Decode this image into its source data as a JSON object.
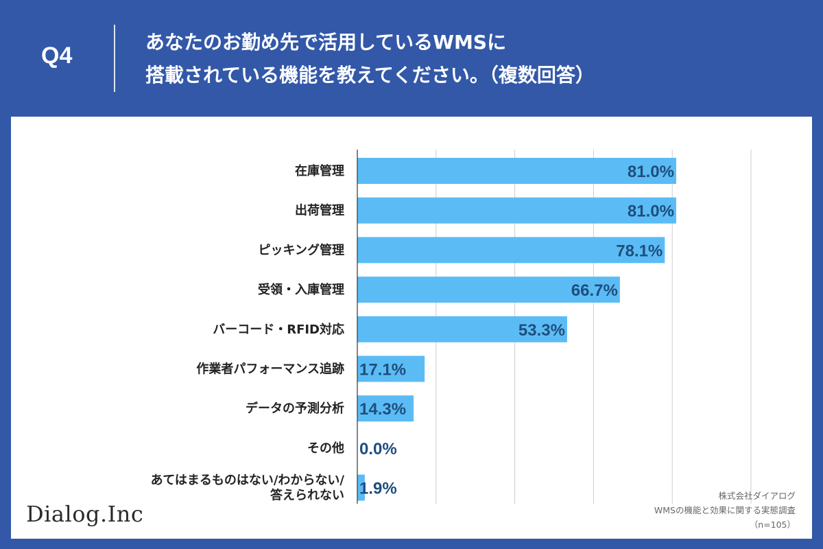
{
  "header": {
    "question_number": "Q4",
    "title_line1": "あなたのお勤め先で活用しているWMSに",
    "title_line2": "搭載されている機能を教えてください。（複数回答）"
  },
  "colors": {
    "header_bg": "#3358a8",
    "bar": "#5bbcf5",
    "value_text": "#1f4e7d",
    "label_text": "#222222",
    "grid": "#cccccc"
  },
  "chart_data": {
    "type": "bar",
    "orientation": "horizontal",
    "title": "",
    "xlabel": "",
    "ylabel": "",
    "xlim": [
      0,
      100
    ],
    "grid": true,
    "categories": [
      [
        "在庫管理"
      ],
      [
        "出荷管理"
      ],
      [
        "ピッキング管理"
      ],
      [
        "受領・入庫管理"
      ],
      [
        "バーコード・RFID対応"
      ],
      [
        "作業者パフォーマンス追跡"
      ],
      [
        "データの予測分析"
      ],
      [
        "その他"
      ],
      [
        "あてはまるものはない/わからない/",
        "答えられない"
      ]
    ],
    "values": [
      81.0,
      81.0,
      78.1,
      66.7,
      53.3,
      17.1,
      14.3,
      0.0,
      1.9
    ],
    "value_labels": [
      "81.0%",
      "81.0%",
      "78.1%",
      "66.7%",
      "53.3%",
      "17.1%",
      "14.3%",
      "0.0%",
      "1.9%"
    ]
  },
  "footer": {
    "logo": "Dialog.Inc",
    "source_company": "株式会社ダイアログ",
    "source_survey": "WMSの機能と効果に関する実態調査",
    "sample_size": "（n=105）"
  }
}
